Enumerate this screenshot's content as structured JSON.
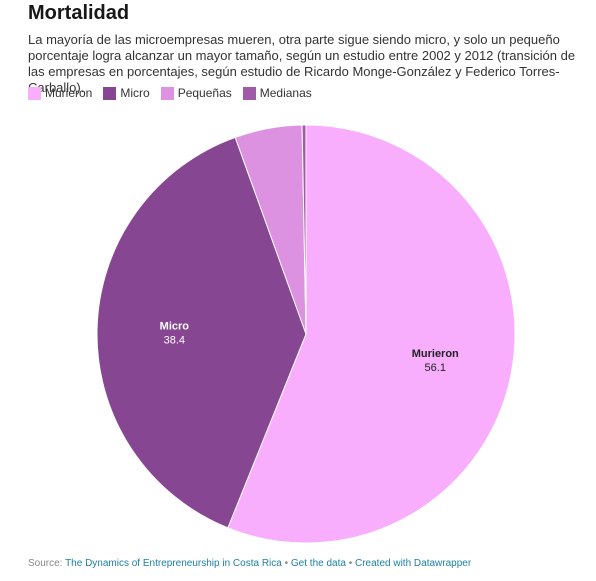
{
  "header": {
    "title": "Mortalidad",
    "subtitle": "La mayoría de las microempresas mueren, otra parte sigue siendo micro, y solo un pequeño porcentaje logra alcanzar un mayor tamaño, según un estudio entre 2002 y 2012 (transición de las empresas en porcentajes, según estudio de Ricardo Monge-González y Federico Torres-Carballo)."
  },
  "chart_data": {
    "type": "pie",
    "title": "Mortalidad",
    "legend_position": "top-left",
    "series": [
      {
        "name": "Murieron",
        "value": 56.1,
        "color": "#f8aefd",
        "label_color": "#222222"
      },
      {
        "name": "Micro",
        "value": 38.4,
        "color": "#874692",
        "label_color": "#ffffff"
      },
      {
        "name": "Pequeñas",
        "value": 5.2,
        "color": "#dc91e1",
        "label_color": "#222222"
      },
      {
        "name": "Medianas",
        "value": 0.3,
        "color": "#a15aa7",
        "label_color": "#222222"
      }
    ],
    "shown_labels": [
      "Murieron",
      "Micro"
    ]
  },
  "footer": {
    "source_prefix": "Source: ",
    "source_link": "The Dynamics of Entrepreneurship in Costa Rica",
    "separator": " • ",
    "get_data": "Get the data",
    "created_with": "Created with Datawrapper"
  }
}
